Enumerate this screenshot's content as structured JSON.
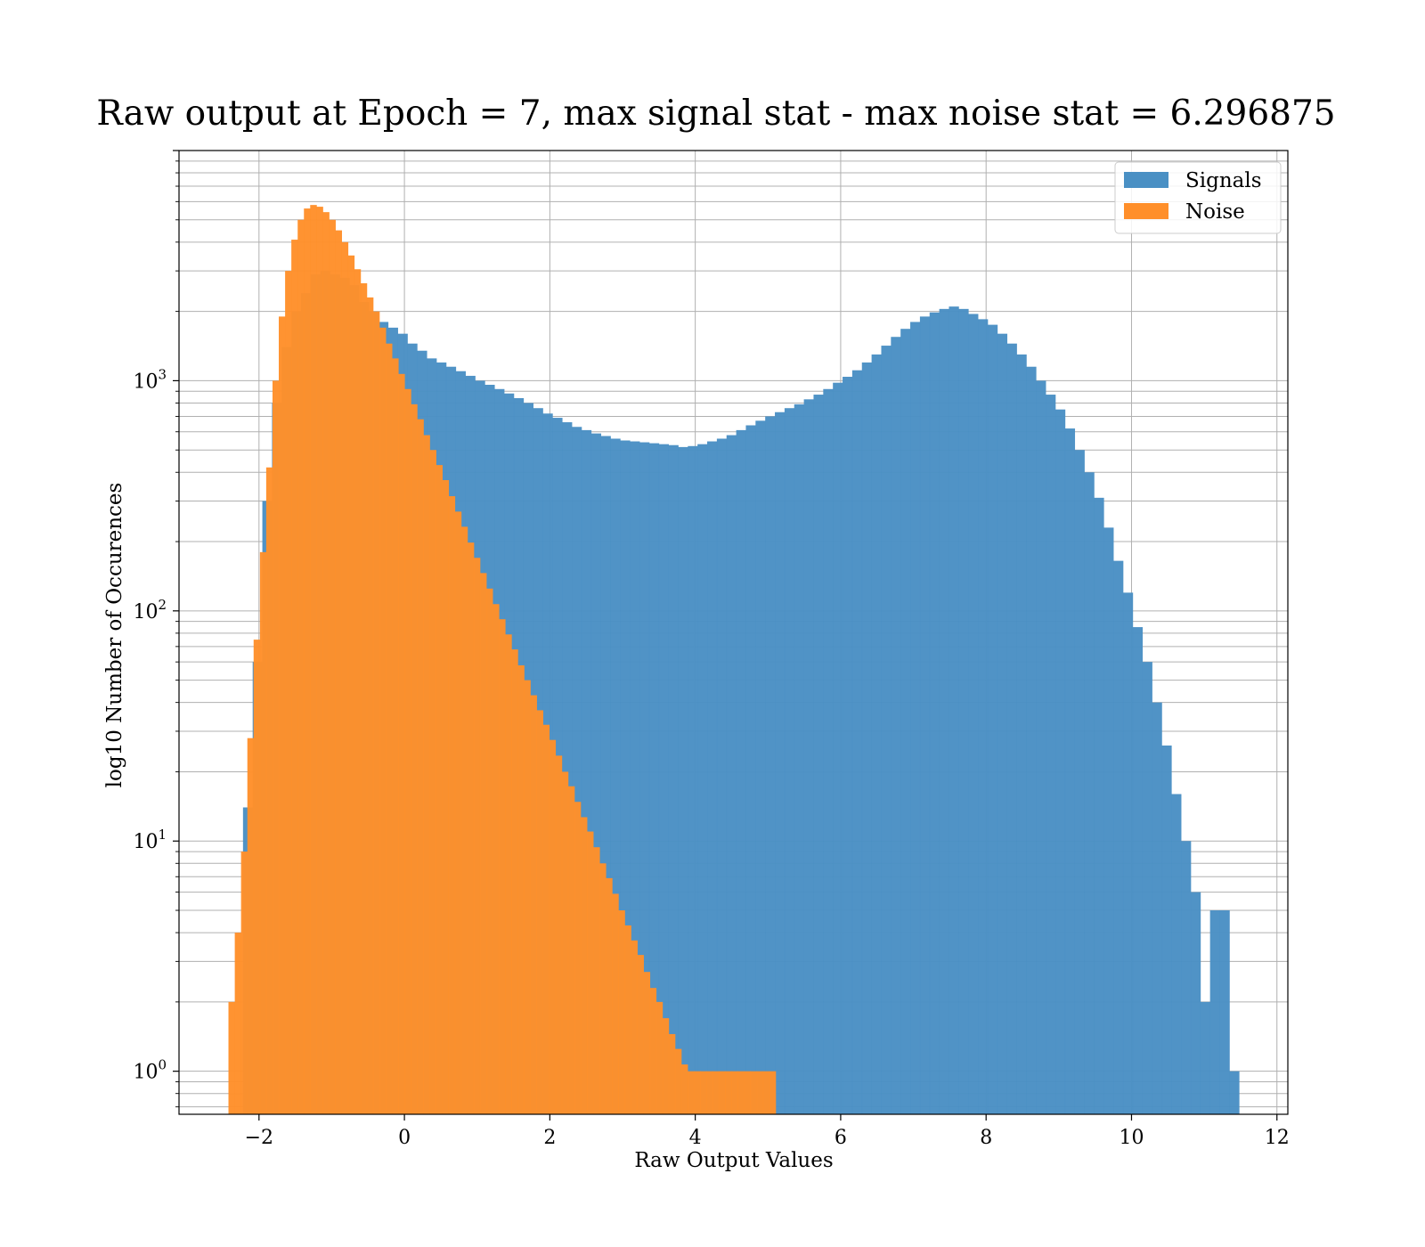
{
  "chart_data": {
    "type": "histogram",
    "title": "Raw output at Epoch = 7, max signal stat - max noise stat = 6.296875",
    "xlabel": "Raw Output Values",
    "ylabel": "log10 Number of Occurences",
    "xlim": [
      -3.1,
      12.15
    ],
    "ylim": [
      0.65,
      10000
    ],
    "yscale": "log",
    "grid": true,
    "legend_position": "top-right",
    "x_ticks": [
      -2,
      0,
      2,
      4,
      6,
      8,
      10,
      12
    ],
    "x_tick_labels": [
      "−2",
      "0",
      "2",
      "4",
      "6",
      "8",
      "10",
      "12"
    ],
    "y_ticks": [
      1,
      10,
      100,
      1000
    ],
    "y_tick_labels": [
      {
        "base": "10",
        "exp": "0"
      },
      {
        "base": "10",
        "exp": "1"
      },
      {
        "base": "10",
        "exp": "2"
      },
      {
        "base": "10",
        "exp": "3"
      }
    ],
    "colors": {
      "signals": "#4a90c4",
      "noise": "#ff8f2a"
    },
    "series": [
      {
        "name": "Signals",
        "color": "#4a90c4",
        "bin_width": 0.133,
        "counts": [
          {
            "x0": -2.22,
            "n": 14
          },
          {
            "x0": -2.087,
            "n": 60
          },
          {
            "x0": -1.954,
            "n": 300
          },
          {
            "x0": -1.821,
            "n": 800
          },
          {
            "x0": -1.688,
            "n": 1400
          },
          {
            "x0": -1.555,
            "n": 2000
          },
          {
            "x0": -1.422,
            "n": 2400
          },
          {
            "x0": -1.289,
            "n": 2900
          },
          {
            "x0": -1.156,
            "n": 3000
          },
          {
            "x0": -1.023,
            "n": 2900
          },
          {
            "x0": -0.89,
            "n": 2800
          },
          {
            "x0": -0.757,
            "n": 2600
          },
          {
            "x0": -0.624,
            "n": 2200
          },
          {
            "x0": -0.491,
            "n": 2000
          },
          {
            "x0": -0.358,
            "n": 1800
          },
          {
            "x0": -0.225,
            "n": 1700
          },
          {
            "x0": -0.092,
            "n": 1600
          },
          {
            "x0": 0.041,
            "n": 1450
          },
          {
            "x0": 0.174,
            "n": 1350
          },
          {
            "x0": 0.307,
            "n": 1250
          },
          {
            "x0": 0.44,
            "n": 1200
          },
          {
            "x0": 0.573,
            "n": 1150
          },
          {
            "x0": 0.706,
            "n": 1100
          },
          {
            "x0": 0.839,
            "n": 1050
          },
          {
            "x0": 0.972,
            "n": 1000
          },
          {
            "x0": 1.105,
            "n": 960
          },
          {
            "x0": 1.238,
            "n": 920
          },
          {
            "x0": 1.371,
            "n": 880
          },
          {
            "x0": 1.504,
            "n": 840
          },
          {
            "x0": 1.637,
            "n": 800
          },
          {
            "x0": 1.77,
            "n": 760
          },
          {
            "x0": 1.903,
            "n": 720
          },
          {
            "x0": 2.036,
            "n": 690
          },
          {
            "x0": 2.169,
            "n": 660
          },
          {
            "x0": 2.302,
            "n": 630
          },
          {
            "x0": 2.435,
            "n": 610
          },
          {
            "x0": 2.568,
            "n": 590
          },
          {
            "x0": 2.701,
            "n": 575
          },
          {
            "x0": 2.834,
            "n": 560
          },
          {
            "x0": 2.967,
            "n": 550
          },
          {
            "x0": 3.1,
            "n": 545
          },
          {
            "x0": 3.233,
            "n": 540
          },
          {
            "x0": 3.366,
            "n": 535
          },
          {
            "x0": 3.499,
            "n": 530
          },
          {
            "x0": 3.632,
            "n": 525
          },
          {
            "x0": 3.765,
            "n": 515
          },
          {
            "x0": 3.898,
            "n": 520
          },
          {
            "x0": 4.031,
            "n": 530
          },
          {
            "x0": 4.164,
            "n": 545
          },
          {
            "x0": 4.297,
            "n": 560
          },
          {
            "x0": 4.43,
            "n": 580
          },
          {
            "x0": 4.563,
            "n": 610
          },
          {
            "x0": 4.696,
            "n": 640
          },
          {
            "x0": 4.829,
            "n": 670
          },
          {
            "x0": 4.962,
            "n": 700
          },
          {
            "x0": 5.095,
            "n": 730
          },
          {
            "x0": 5.228,
            "n": 760
          },
          {
            "x0": 5.361,
            "n": 790
          },
          {
            "x0": 5.494,
            "n": 830
          },
          {
            "x0": 5.627,
            "n": 870
          },
          {
            "x0": 5.76,
            "n": 920
          },
          {
            "x0": 5.893,
            "n": 980
          },
          {
            "x0": 6.026,
            "n": 1040
          },
          {
            "x0": 6.159,
            "n": 1110
          },
          {
            "x0": 6.292,
            "n": 1200
          },
          {
            "x0": 6.425,
            "n": 1300
          },
          {
            "x0": 6.558,
            "n": 1420
          },
          {
            "x0": 6.691,
            "n": 1550
          },
          {
            "x0": 6.824,
            "n": 1680
          },
          {
            "x0": 6.957,
            "n": 1800
          },
          {
            "x0": 7.09,
            "n": 1900
          },
          {
            "x0": 7.223,
            "n": 1980
          },
          {
            "x0": 7.356,
            "n": 2050
          },
          {
            "x0": 7.489,
            "n": 2100
          },
          {
            "x0": 7.622,
            "n": 2050
          },
          {
            "x0": 7.755,
            "n": 1950
          },
          {
            "x0": 7.888,
            "n": 1850
          },
          {
            "x0": 8.021,
            "n": 1750
          },
          {
            "x0": 8.154,
            "n": 1600
          },
          {
            "x0": 8.287,
            "n": 1450
          },
          {
            "x0": 8.42,
            "n": 1300
          },
          {
            "x0": 8.553,
            "n": 1150
          },
          {
            "x0": 8.686,
            "n": 1000
          },
          {
            "x0": 8.819,
            "n": 870
          },
          {
            "x0": 8.952,
            "n": 750
          },
          {
            "x0": 9.085,
            "n": 620
          },
          {
            "x0": 9.218,
            "n": 500
          },
          {
            "x0": 9.351,
            "n": 400
          },
          {
            "x0": 9.484,
            "n": 310
          },
          {
            "x0": 9.617,
            "n": 230
          },
          {
            "x0": 9.75,
            "n": 165
          },
          {
            "x0": 9.883,
            "n": 120
          },
          {
            "x0": 10.016,
            "n": 85
          },
          {
            "x0": 10.149,
            "n": 60
          },
          {
            "x0": 10.282,
            "n": 40
          },
          {
            "x0": 10.415,
            "n": 26
          },
          {
            "x0": 10.548,
            "n": 16
          },
          {
            "x0": 10.681,
            "n": 10
          },
          {
            "x0": 10.814,
            "n": 6
          },
          {
            "x0": 10.947,
            "n": 2
          },
          {
            "x0": 11.08,
            "n": 5
          },
          {
            "x0": 11.213,
            "n": 5
          },
          {
            "x0": 11.346,
            "n": 1
          }
        ]
      },
      {
        "name": "Noise",
        "color": "#ff8f2a",
        "bin_width": 0.0865,
        "counts": [
          {
            "x0": -2.42,
            "n": 2
          },
          {
            "x0": -2.333,
            "n": 4
          },
          {
            "x0": -2.247,
            "n": 9
          },
          {
            "x0": -2.16,
            "n": 28
          },
          {
            "x0": -2.074,
            "n": 75
          },
          {
            "x0": -1.987,
            "n": 180
          },
          {
            "x0": -1.901,
            "n": 420
          },
          {
            "x0": -1.814,
            "n": 1000
          },
          {
            "x0": -1.728,
            "n": 1900
          },
          {
            "x0": -1.641,
            "n": 3000
          },
          {
            "x0": -1.555,
            "n": 4100
          },
          {
            "x0": -1.468,
            "n": 5000
          },
          {
            "x0": -1.382,
            "n": 5600
          },
          {
            "x0": -1.296,
            "n": 5800
          },
          {
            "x0": -1.209,
            "n": 5700
          },
          {
            "x0": -1.123,
            "n": 5400
          },
          {
            "x0": -1.036,
            "n": 5000
          },
          {
            "x0": -0.95,
            "n": 4500
          },
          {
            "x0": -0.863,
            "n": 4000
          },
          {
            "x0": -0.777,
            "n": 3500
          },
          {
            "x0": -0.69,
            "n": 3050
          },
          {
            "x0": -0.604,
            "n": 2650
          },
          {
            "x0": -0.517,
            "n": 2300
          },
          {
            "x0": -0.431,
            "n": 2000
          },
          {
            "x0": -0.344,
            "n": 1700
          },
          {
            "x0": -0.258,
            "n": 1450
          },
          {
            "x0": -0.171,
            "n": 1250
          },
          {
            "x0": -0.085,
            "n": 1070
          },
          {
            "x0": 0.002,
            "n": 920
          },
          {
            "x0": 0.088,
            "n": 790
          },
          {
            "x0": 0.175,
            "n": 680
          },
          {
            "x0": 0.261,
            "n": 580
          },
          {
            "x0": 0.348,
            "n": 500
          },
          {
            "x0": 0.434,
            "n": 430
          },
          {
            "x0": 0.521,
            "n": 370
          },
          {
            "x0": 0.607,
            "n": 315
          },
          {
            "x0": 0.694,
            "n": 270
          },
          {
            "x0": 0.78,
            "n": 232
          },
          {
            "x0": 0.867,
            "n": 198
          },
          {
            "x0": 0.953,
            "n": 170
          },
          {
            "x0": 1.04,
            "n": 146
          },
          {
            "x0": 1.126,
            "n": 125
          },
          {
            "x0": 1.213,
            "n": 107
          },
          {
            "x0": 1.299,
            "n": 92
          },
          {
            "x0": 1.386,
            "n": 79
          },
          {
            "x0": 1.472,
            "n": 68
          },
          {
            "x0": 1.559,
            "n": 58
          },
          {
            "x0": 1.645,
            "n": 50
          },
          {
            "x0": 1.732,
            "n": 43
          },
          {
            "x0": 1.818,
            "n": 37
          },
          {
            "x0": 1.905,
            "n": 32
          },
          {
            "x0": 1.991,
            "n": 27.5
          },
          {
            "x0": 2.078,
            "n": 23.5
          },
          {
            "x0": 2.164,
            "n": 20
          },
          {
            "x0": 2.251,
            "n": 17.3
          },
          {
            "x0": 2.337,
            "n": 14.8
          },
          {
            "x0": 2.424,
            "n": 12.7
          },
          {
            "x0": 2.51,
            "n": 11
          },
          {
            "x0": 2.597,
            "n": 9.4
          },
          {
            "x0": 2.683,
            "n": 8
          },
          {
            "x0": 2.77,
            "n": 6.9
          },
          {
            "x0": 2.856,
            "n": 5.9
          },
          {
            "x0": 2.943,
            "n": 5
          },
          {
            "x0": 3.029,
            "n": 4.3
          },
          {
            "x0": 3.116,
            "n": 3.7
          },
          {
            "x0": 3.202,
            "n": 3.2
          },
          {
            "x0": 3.289,
            "n": 2.7
          },
          {
            "x0": 3.375,
            "n": 2.3
          },
          {
            "x0": 3.462,
            "n": 2
          },
          {
            "x0": 3.548,
            "n": 1.7
          },
          {
            "x0": 3.635,
            "n": 1.45
          },
          {
            "x0": 3.721,
            "n": 1.25
          },
          {
            "x0": 3.808,
            "n": 1.07
          },
          {
            "x0": 3.894,
            "n": 1
          },
          {
            "x0": 3.981,
            "n": 1
          },
          {
            "x0": 4.067,
            "n": 1
          },
          {
            "x0": 4.154,
            "n": 1
          },
          {
            "x0": 4.24,
            "n": 1
          },
          {
            "x0": 4.327,
            "n": 1
          },
          {
            "x0": 4.413,
            "n": 1
          },
          {
            "x0": 4.5,
            "n": 1
          },
          {
            "x0": 4.586,
            "n": 1
          },
          {
            "x0": 4.673,
            "n": 1
          },
          {
            "x0": 4.759,
            "n": 1
          },
          {
            "x0": 4.846,
            "n": 1
          },
          {
            "x0": 4.932,
            "n": 1
          },
          {
            "x0": 5.019,
            "n": 1
          }
        ]
      }
    ]
  }
}
